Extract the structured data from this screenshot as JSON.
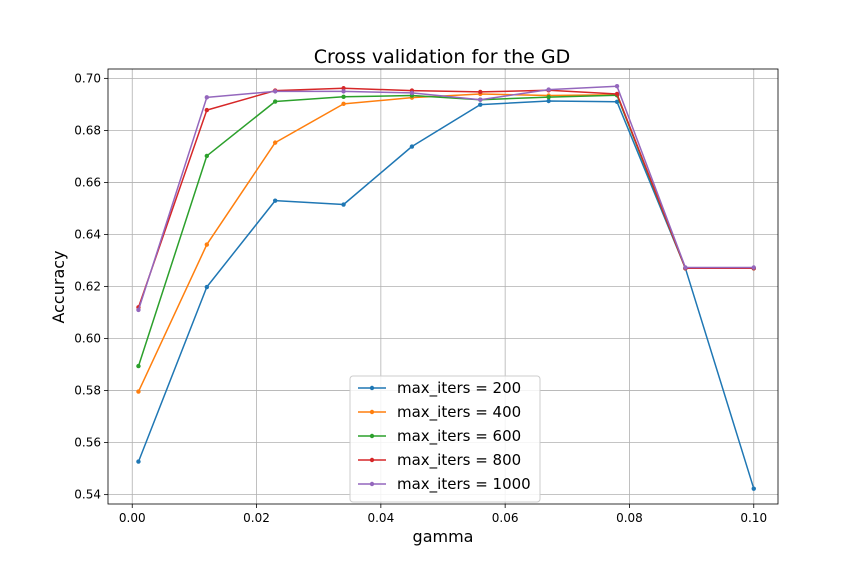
{
  "chart_data": {
    "type": "line",
    "title": "Cross validation for the GD",
    "xlabel": "gamma",
    "ylabel": "Accuracy",
    "xlim": [
      -0.0039,
      0.1039
    ],
    "ylim": [
      0.5364,
      0.7036
    ],
    "xticks": [
      0.0,
      0.02,
      0.04,
      0.06,
      0.08,
      0.1
    ],
    "xtick_labels": [
      "0.00",
      "0.02",
      "0.04",
      "0.06",
      "0.08",
      "0.10"
    ],
    "yticks": [
      0.54,
      0.56,
      0.58,
      0.6,
      0.62,
      0.64,
      0.66,
      0.68,
      0.7
    ],
    "ytick_labels": [
      "0.54",
      "0.56",
      "0.58",
      "0.60",
      "0.62",
      "0.64",
      "0.66",
      "0.68",
      "0.70"
    ],
    "grid": true,
    "legend_position": "bottom-center",
    "x": [
      0.001,
      0.012,
      0.023,
      0.034,
      0.045,
      0.056,
      0.067,
      0.078,
      0.089,
      0.1
    ],
    "series": [
      {
        "name": "max_iters = 200",
        "color": "#1f77b4",
        "values": [
          0.5527,
          0.6198,
          0.653,
          0.6515,
          0.6738,
          0.6899,
          0.6913,
          0.691,
          0.627,
          0.5423
        ]
      },
      {
        "name": "max_iters = 400",
        "color": "#ff7f0e",
        "values": [
          0.5796,
          0.6361,
          0.6753,
          0.6902,
          0.6926,
          0.694,
          0.6934,
          0.6937,
          0.627,
          0.627
        ]
      },
      {
        "name": "max_iters = 600",
        "color": "#2ca02c",
        "values": [
          0.5894,
          0.6702,
          0.6911,
          0.6929,
          0.6934,
          0.6918,
          0.6928,
          0.6935,
          0.627,
          0.627
        ]
      },
      {
        "name": "max_iters = 800",
        "color": "#d62728",
        "values": [
          0.612,
          0.6878,
          0.6953,
          0.6962,
          0.6953,
          0.6948,
          0.6954,
          0.694,
          0.627,
          0.627
        ]
      },
      {
        "name": "max_iters = 1000",
        "color": "#9467bd",
        "values": [
          0.611,
          0.6927,
          0.695,
          0.695,
          0.6944,
          0.6918,
          0.6957,
          0.697,
          0.6273,
          0.6273
        ]
      }
    ]
  }
}
